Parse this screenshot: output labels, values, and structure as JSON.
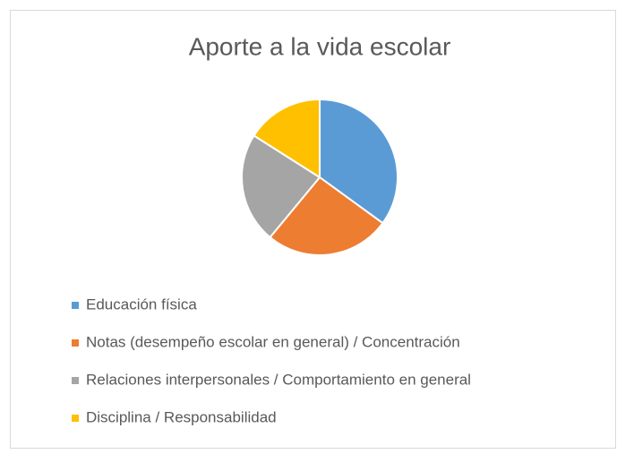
{
  "chart_data": {
    "type": "pie",
    "title": "Aporte a la vida escolar",
    "categories": [
      "Educación física",
      "Notas (desempeño escolar en general) / Concentración",
      "Relaciones interpersonales / Comportamiento en general",
      "Disciplina / Responsabilidad"
    ],
    "values": [
      35,
      26,
      23,
      16
    ],
    "colors": [
      "#5b9bd5",
      "#ed7d31",
      "#a5a5a5",
      "#ffc000"
    ]
  }
}
